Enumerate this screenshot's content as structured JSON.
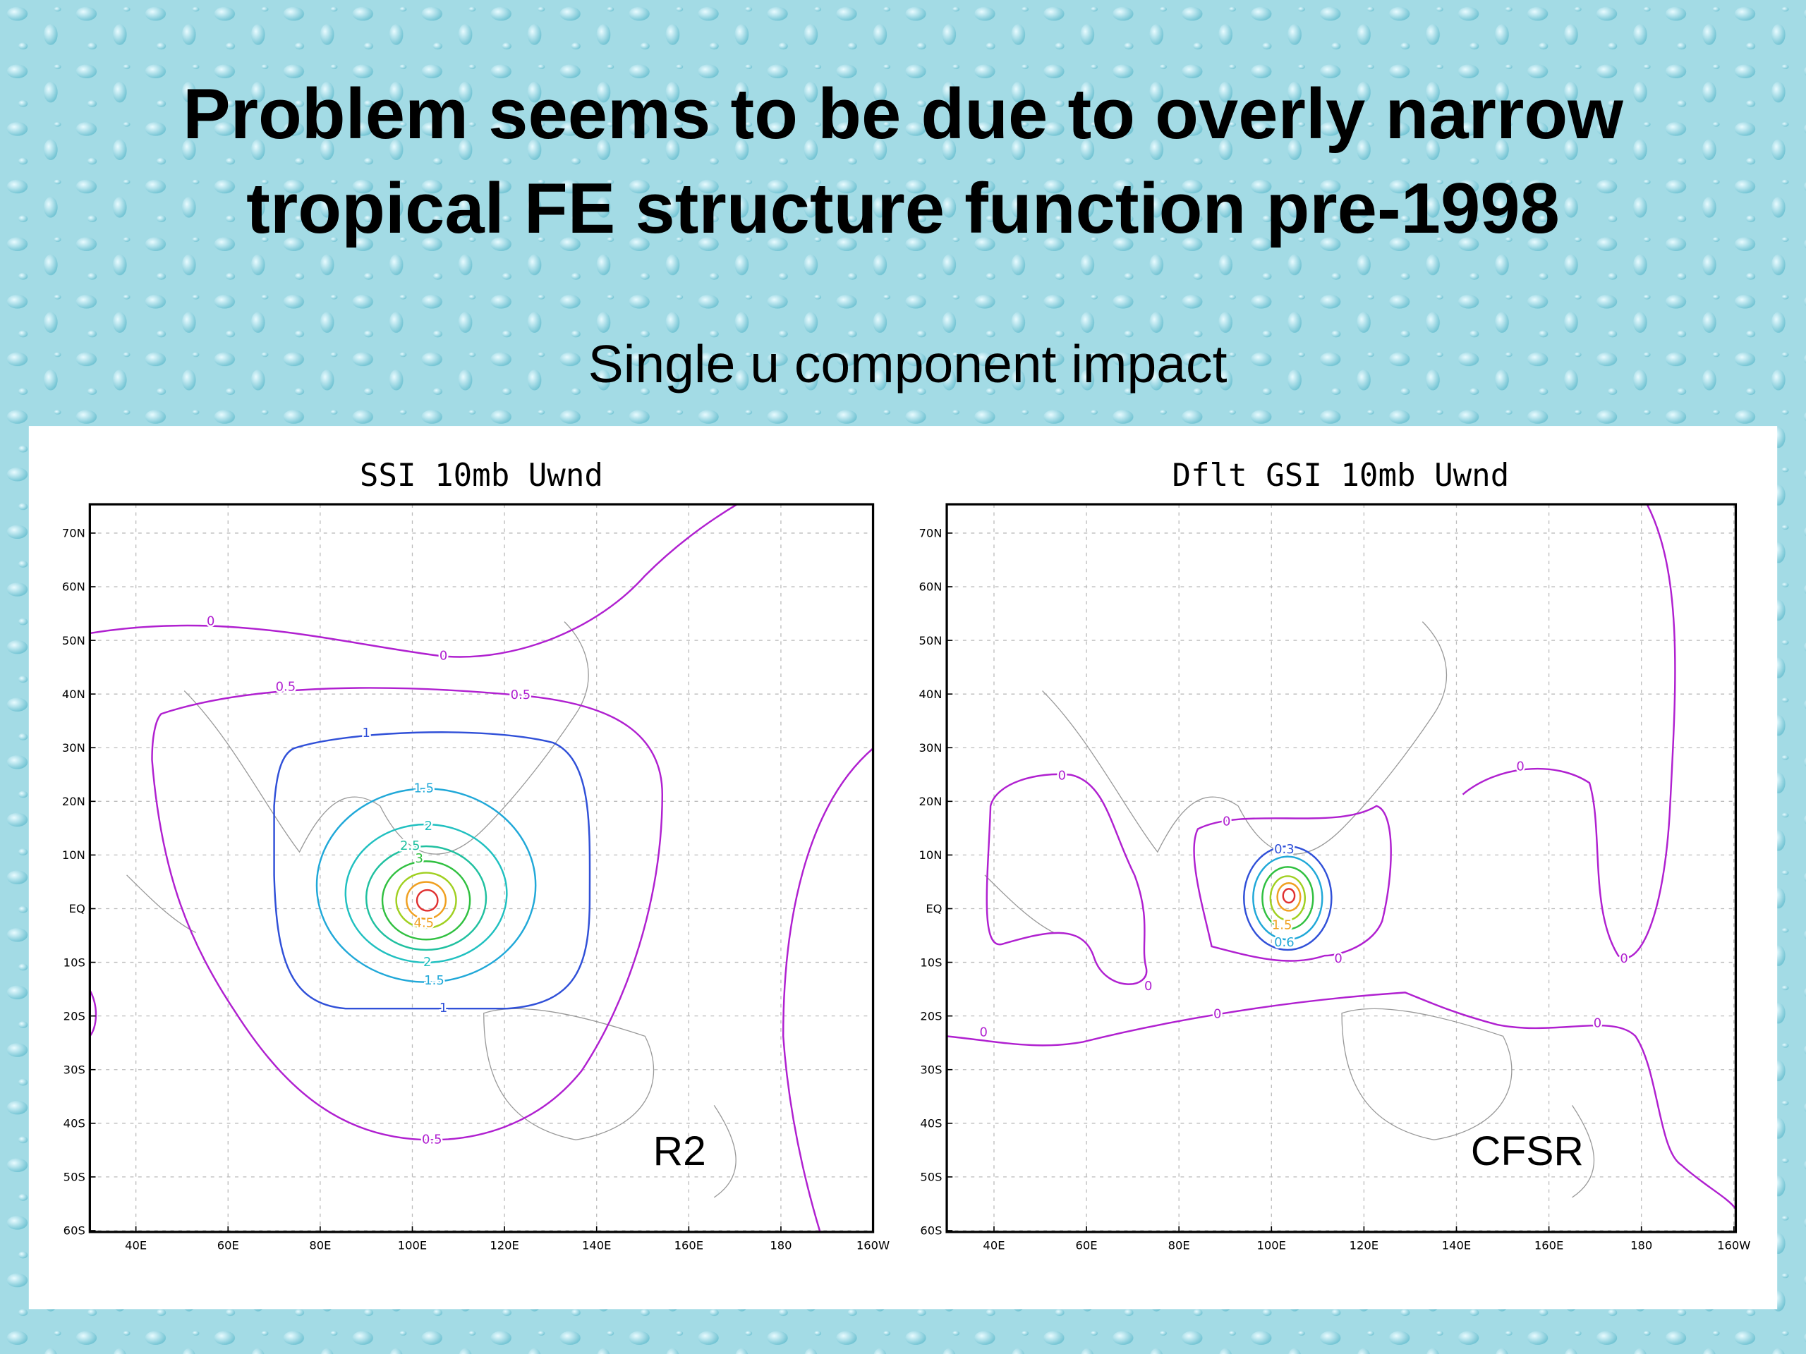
{
  "title_lines": [
    "Problem seems to be due to overly narrow",
    "tropical FE structure function pre-1998"
  ],
  "subtitle": "Single u component impact",
  "panels": [
    {
      "title": "SSI 10mb Uwnd",
      "corner_label": "R2",
      "lat_ticks": [
        "70N",
        "60N",
        "50N",
        "40N",
        "30N",
        "20N",
        "10N",
        "EQ",
        "10S",
        "20S",
        "30S",
        "40S",
        "50S",
        "60S"
      ],
      "lon_ticks": [
        "40E",
        "60E",
        "80E",
        "100E",
        "120E",
        "140E",
        "160E",
        "180",
        "160W"
      ],
      "contour_labels": [
        "0",
        "0",
        "0.5",
        "0.5",
        "0.5",
        "1",
        "1",
        "1.5",
        "1.5",
        "2",
        "2",
        "2.5",
        "3",
        "4.5"
      ]
    },
    {
      "title": "Dflt GSI 10mb Uwnd",
      "corner_label": "CFSR",
      "lat_ticks": [
        "70N",
        "60N",
        "50N",
        "40N",
        "30N",
        "20N",
        "10N",
        "EQ",
        "10S",
        "20S",
        "30S",
        "40S",
        "50S",
        "60S"
      ],
      "lon_ticks": [
        "40E",
        "60E",
        "80E",
        "100E",
        "120E",
        "140E",
        "160E",
        "180",
        "160W"
      ],
      "contour_labels": [
        "0",
        "0",
        "0",
        "0",
        "0",
        "0",
        "0",
        "0",
        "0",
        "0.3",
        "1.5",
        "0.6"
      ]
    }
  ]
}
